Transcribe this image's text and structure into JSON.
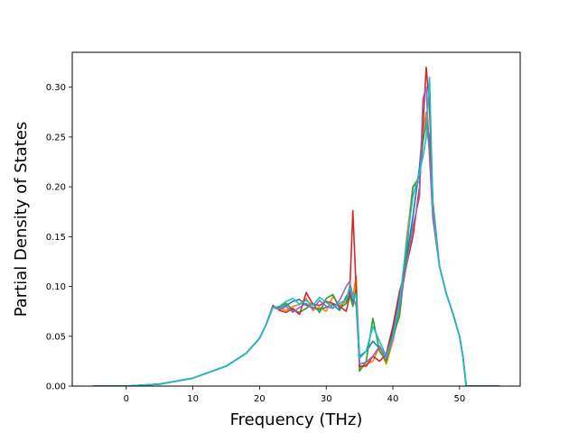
{
  "chart_data": {
    "type": "line",
    "title": "",
    "xlabel": "Frequency (THz)",
    "ylabel": "Partial Density of States",
    "xlim": [
      -8.1,
      59.1
    ],
    "ylim": [
      0.0,
      0.335
    ],
    "xticks": [
      0,
      10,
      20,
      30,
      40,
      50
    ],
    "yticks": [
      0.0,
      0.05,
      0.1,
      0.15,
      0.2,
      0.25,
      0.3
    ],
    "ytick_labels": [
      "0.00",
      "0.05",
      "0.10",
      "0.15",
      "0.20",
      "0.25",
      "0.30"
    ],
    "grid": false,
    "legend": "none",
    "series": [
      {
        "color": "#1f77b4",
        "x": [
          -5,
          0,
          5,
          10,
          15,
          18,
          20,
          21,
          22,
          23,
          24,
          25,
          26,
          27,
          28,
          29,
          30,
          31,
          32,
          33,
          33.5,
          34,
          34.5,
          35,
          36,
          37,
          38,
          39,
          40,
          41,
          42,
          43,
          44,
          44.5,
          45,
          45.5,
          46,
          47,
          48,
          49,
          50,
          50.5,
          51,
          52,
          56
        ],
        "y": [
          0,
          0,
          0.002,
          0.008,
          0.02,
          0.033,
          0.048,
          0.062,
          0.079,
          0.077,
          0.081,
          0.085,
          0.087,
          0.081,
          0.079,
          0.077,
          0.079,
          0.082,
          0.076,
          0.09,
          0.095,
          0.085,
          0.095,
          0.03,
          0.035,
          0.045,
          0.038,
          0.03,
          0.055,
          0.09,
          0.125,
          0.17,
          0.22,
          0.262,
          0.27,
          0.235,
          0.175,
          0.12,
          0.093,
          0.073,
          0.05,
          0.03,
          0,
          0,
          0
        ]
      },
      {
        "color": "#ff7f0e",
        "x": [
          -5,
          0,
          5,
          10,
          15,
          18,
          20,
          21,
          22,
          23,
          24,
          25,
          26,
          27,
          28,
          29,
          30,
          31,
          32,
          33,
          33.5,
          34,
          34.5,
          35,
          36,
          37,
          38,
          39,
          40,
          41,
          42,
          43,
          44,
          44.5,
          45,
          45.5,
          46,
          47,
          48,
          49,
          50,
          50.5,
          51,
          52,
          56
        ],
        "y": [
          0,
          0,
          0.002,
          0.008,
          0.02,
          0.033,
          0.048,
          0.062,
          0.079,
          0.078,
          0.076,
          0.08,
          0.082,
          0.088,
          0.076,
          0.079,
          0.075,
          0.09,
          0.081,
          0.085,
          0.1,
          0.09,
          0.11,
          0.018,
          0.022,
          0.025,
          0.04,
          0.022,
          0.045,
          0.075,
          0.145,
          0.2,
          0.205,
          0.255,
          0.275,
          0.24,
          0.17,
          0.12,
          0.093,
          0.073,
          0.05,
          0.03,
          0,
          0,
          0
        ]
      },
      {
        "color": "#2ca02c",
        "x": [
          -5,
          0,
          5,
          10,
          15,
          18,
          20,
          21,
          22,
          23,
          24,
          25,
          26,
          27,
          28,
          29,
          30,
          31,
          32,
          33,
          33.5,
          34,
          34.5,
          35,
          36,
          37,
          38,
          39,
          40,
          41,
          42,
          43,
          44,
          44.5,
          45,
          45.5,
          46,
          47,
          48,
          49,
          50,
          50.5,
          51,
          52,
          56
        ],
        "y": [
          0,
          0,
          0.002,
          0.008,
          0.02,
          0.033,
          0.048,
          0.062,
          0.079,
          0.079,
          0.083,
          0.076,
          0.074,
          0.078,
          0.083,
          0.074,
          0.088,
          0.092,
          0.078,
          0.083,
          0.092,
          0.08,
          0.1,
          0.015,
          0.025,
          0.068,
          0.035,
          0.025,
          0.05,
          0.07,
          0.13,
          0.2,
          0.21,
          0.245,
          0.265,
          0.25,
          0.172,
          0.12,
          0.093,
          0.073,
          0.05,
          0.03,
          0,
          0,
          0
        ]
      },
      {
        "color": "#d62728",
        "x": [
          -5,
          0,
          5,
          10,
          15,
          18,
          20,
          21,
          22,
          23,
          24,
          25,
          26,
          27,
          28,
          29,
          30,
          31,
          32,
          33,
          33.5,
          34,
          34.5,
          35,
          36,
          37,
          38,
          39,
          40,
          41,
          42,
          43,
          44,
          44.5,
          45,
          45.5,
          46,
          47,
          48,
          49,
          50,
          50.5,
          51,
          52,
          56
        ],
        "y": [
          0,
          0,
          0.002,
          0.008,
          0.02,
          0.033,
          0.048,
          0.062,
          0.081,
          0.076,
          0.074,
          0.078,
          0.072,
          0.094,
          0.082,
          0.081,
          0.085,
          0.083,
          0.08,
          0.075,
          0.09,
          0.176,
          0.095,
          0.02,
          0.02,
          0.03,
          0.025,
          0.032,
          0.06,
          0.095,
          0.12,
          0.15,
          0.2,
          0.26,
          0.32,
          0.28,
          0.185,
          0.12,
          0.093,
          0.073,
          0.05,
          0.03,
          0,
          0,
          0
        ]
      },
      {
        "color": "#9467bd",
        "x": [
          -5,
          0,
          5,
          10,
          15,
          18,
          20,
          21,
          22,
          23,
          24,
          25,
          26,
          27,
          28,
          29,
          30,
          31,
          32,
          33,
          33.5,
          34,
          34.5,
          35,
          36,
          37,
          38,
          39,
          40,
          41,
          42,
          43,
          44,
          44.5,
          45,
          45.5,
          46,
          47,
          48,
          49,
          50,
          50.5,
          51,
          52,
          56
        ],
        "y": [
          0,
          0,
          0.002,
          0.008,
          0.02,
          0.033,
          0.048,
          0.062,
          0.08,
          0.077,
          0.08,
          0.074,
          0.079,
          0.083,
          0.077,
          0.086,
          0.08,
          0.078,
          0.086,
          0.1,
          0.105,
          0.09,
          0.08,
          0.022,
          0.024,
          0.03,
          0.04,
          0.028,
          0.048,
          0.08,
          0.12,
          0.16,
          0.19,
          0.288,
          0.3,
          0.23,
          0.168,
          0.12,
          0.093,
          0.073,
          0.05,
          0.03,
          0,
          0,
          0
        ]
      },
      {
        "color": "#17becf",
        "x": [
          -5,
          0,
          5,
          10,
          15,
          18,
          20,
          21,
          22,
          23,
          24,
          25,
          26,
          27,
          28,
          29,
          30,
          31,
          32,
          33,
          33.5,
          34,
          34.5,
          35,
          36,
          37,
          38,
          39,
          40,
          41,
          42,
          43,
          44,
          44.5,
          45,
          45.5,
          46,
          47,
          48,
          49,
          50,
          50.5,
          51,
          52,
          56
        ],
        "y": [
          0,
          0,
          0.002,
          0.008,
          0.02,
          0.033,
          0.048,
          0.062,
          0.079,
          0.08,
          0.085,
          0.088,
          0.082,
          0.086,
          0.081,
          0.089,
          0.084,
          0.079,
          0.083,
          0.087,
          0.099,
          0.088,
          0.092,
          0.028,
          0.035,
          0.06,
          0.045,
          0.03,
          0.05,
          0.085,
          0.14,
          0.19,
          0.215,
          0.23,
          0.25,
          0.31,
          0.18,
          0.12,
          0.093,
          0.073,
          0.05,
          0.03,
          0,
          0,
          0
        ]
      }
    ]
  }
}
